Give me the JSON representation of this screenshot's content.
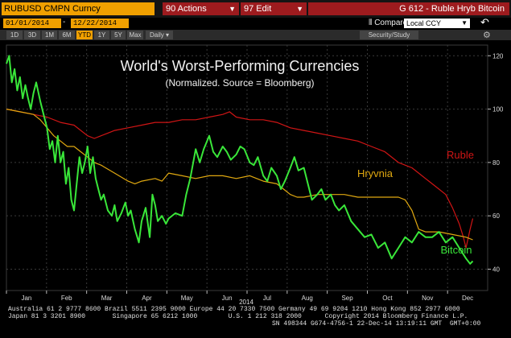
{
  "header": {
    "ticker": "RUBUSD CMPN Curncy",
    "actions_label": "90 Actions",
    "edit_label": "97 Edit",
    "security_title": "G 612 - Ruble Hryb Bitcoin",
    "start_date": "01/01/2014",
    "end_date": "12/22/2014",
    "compare_label": "Compare",
    "currency_option": "Local CCY",
    "undo_icon": "undo-arrow-icon",
    "settings_icon": "gear-icon"
  },
  "periods": [
    "1D",
    "3D",
    "1M",
    "6M",
    "YTD",
    "1Y",
    "5Y",
    "Max"
  ],
  "active_period": "YTD",
  "frequency": "Daily",
  "security_study_label": "Security/Study",
  "footer": {
    "line1": "Australia 61 2 9777 8600 Brazil 5511 2395 9000 Europe 44 20 7330 7500 Germany 49 69 9204 1210 Hong Kong 852 2977 6000",
    "line2": "Japan 81 3 3201 8900       Singapore 65 6212 1000        U.S. 1 212 318 2000      Copyright 2014 Bloomberg Finance L.P.",
    "line3": "SN 498344 G674-4756-1 22-Dec-14 13:19:11 GMT  GMT+0:00"
  },
  "colors": {
    "background": "#000000",
    "ruble": "#d01515",
    "hryvnia": "#e0a810",
    "bitcoin": "#39e639",
    "grid": "#3a3a3a",
    "accent": "#f0a000",
    "tab_red": "#9d1b1e"
  },
  "chart_data": {
    "type": "line",
    "title": "World's Worst-Performing Currencies",
    "subtitle": "(Normalized. Source = Bloomberg)",
    "xlabel": "2014",
    "x_ticks": [
      "Jan",
      "Feb",
      "Mar",
      "Apr",
      "May",
      "Jun",
      "Jul",
      "Aug",
      "Sep",
      "Oct",
      "Nov",
      "Dec"
    ],
    "y_ticks": [
      40,
      60,
      80,
      100,
      120
    ],
    "ylim": [
      32,
      124
    ],
    "xlim": [
      0,
      356
    ],
    "grid": true,
    "series": [
      {
        "name": "Ruble",
        "color": "#d01515",
        "points": [
          [
            0,
            100
          ],
          [
            10,
            99
          ],
          [
            20,
            98
          ],
          [
            30,
            97
          ],
          [
            40,
            95
          ],
          [
            50,
            94
          ],
          [
            55,
            92
          ],
          [
            60,
            90
          ],
          [
            65,
            89
          ],
          [
            70,
            90
          ],
          [
            75,
            91
          ],
          [
            80,
            92
          ],
          [
            90,
            93
          ],
          [
            100,
            94
          ],
          [
            110,
            95
          ],
          [
            120,
            95
          ],
          [
            130,
            96
          ],
          [
            140,
            96
          ],
          [
            150,
            97
          ],
          [
            160,
            98
          ],
          [
            165,
            99
          ],
          [
            170,
            97
          ],
          [
            180,
            96
          ],
          [
            190,
            96
          ],
          [
            200,
            95
          ],
          [
            210,
            93
          ],
          [
            220,
            92
          ],
          [
            230,
            91
          ],
          [
            240,
            90
          ],
          [
            250,
            89
          ],
          [
            260,
            88
          ],
          [
            270,
            86
          ],
          [
            280,
            84
          ],
          [
            290,
            80
          ],
          [
            300,
            78
          ],
          [
            305,
            76
          ],
          [
            310,
            74
          ],
          [
            315,
            72
          ],
          [
            320,
            70
          ],
          [
            325,
            68
          ],
          [
            330,
            63
          ],
          [
            335,
            57
          ],
          [
            338,
            52
          ],
          [
            340,
            48
          ],
          [
            343,
            55
          ],
          [
            345,
            59
          ]
        ]
      },
      {
        "name": "Hryvnia",
        "color": "#e0a810",
        "points": [
          [
            0,
            100
          ],
          [
            10,
            99
          ],
          [
            20,
            98
          ],
          [
            25,
            96
          ],
          [
            30,
            93
          ],
          [
            35,
            90
          ],
          [
            40,
            88
          ],
          [
            45,
            86
          ],
          [
            50,
            86
          ],
          [
            55,
            84
          ],
          [
            60,
            82
          ],
          [
            65,
            80
          ],
          [
            70,
            79
          ],
          [
            80,
            76
          ],
          [
            90,
            73
          ],
          [
            95,
            72
          ],
          [
            100,
            73
          ],
          [
            110,
            74
          ],
          [
            115,
            73
          ],
          [
            120,
            76
          ],
          [
            130,
            75
          ],
          [
            140,
            74
          ],
          [
            150,
            75
          ],
          [
            160,
            75
          ],
          [
            170,
            74
          ],
          [
            180,
            75
          ],
          [
            190,
            73
          ],
          [
            200,
            72
          ],
          [
            205,
            70
          ],
          [
            210,
            68
          ],
          [
            215,
            67
          ],
          [
            220,
            67
          ],
          [
            230,
            68
          ],
          [
            240,
            68
          ],
          [
            250,
            68
          ],
          [
            260,
            67
          ],
          [
            270,
            67
          ],
          [
            280,
            67
          ],
          [
            290,
            67
          ],
          [
            295,
            66
          ],
          [
            300,
            62
          ],
          [
            305,
            55
          ],
          [
            310,
            54
          ],
          [
            320,
            54
          ],
          [
            330,
            53
          ],
          [
            340,
            52
          ],
          [
            345,
            51
          ]
        ]
      },
      {
        "name": "Bitcoin",
        "color": "#39e639",
        "points": [
          [
            0,
            117
          ],
          [
            2,
            120
          ],
          [
            4,
            110
          ],
          [
            6,
            115
          ],
          [
            8,
            107
          ],
          [
            10,
            112
          ],
          [
            12,
            104
          ],
          [
            14,
            109
          ],
          [
            16,
            104
          ],
          [
            18,
            100
          ],
          [
            20,
            106
          ],
          [
            22,
            110
          ],
          [
            25,
            103
          ],
          [
            28,
            97
          ],
          [
            30,
            93
          ],
          [
            32,
            85
          ],
          [
            34,
            88
          ],
          [
            36,
            80
          ],
          [
            38,
            90
          ],
          [
            40,
            80
          ],
          [
            42,
            84
          ],
          [
            44,
            72
          ],
          [
            46,
            78
          ],
          [
            48,
            66
          ],
          [
            50,
            62
          ],
          [
            52,
            72
          ],
          [
            54,
            82
          ],
          [
            56,
            76
          ],
          [
            58,
            80
          ],
          [
            60,
            86
          ],
          [
            62,
            76
          ],
          [
            64,
            82
          ],
          [
            66,
            74
          ],
          [
            68,
            70
          ],
          [
            70,
            66
          ],
          [
            72,
            68
          ],
          [
            75,
            62
          ],
          [
            78,
            60
          ],
          [
            80,
            64
          ],
          [
            82,
            58
          ],
          [
            85,
            61
          ],
          [
            88,
            65
          ],
          [
            90,
            60
          ],
          [
            92,
            62
          ],
          [
            95,
            55
          ],
          [
            98,
            50
          ],
          [
            100,
            58
          ],
          [
            103,
            63
          ],
          [
            106,
            52
          ],
          [
            108,
            68
          ],
          [
            110,
            64
          ],
          [
            112,
            58
          ],
          [
            115,
            60
          ],
          [
            118,
            57
          ],
          [
            120,
            59
          ],
          [
            125,
            61
          ],
          [
            130,
            60
          ],
          [
            133,
            68
          ],
          [
            136,
            74
          ],
          [
            140,
            85
          ],
          [
            143,
            80
          ],
          [
            146,
            85
          ],
          [
            150,
            90
          ],
          [
            153,
            84
          ],
          [
            156,
            82
          ],
          [
            160,
            86
          ],
          [
            163,
            84
          ],
          [
            166,
            81
          ],
          [
            170,
            83
          ],
          [
            173,
            86
          ],
          [
            176,
            85
          ],
          [
            180,
            80
          ],
          [
            183,
            79
          ],
          [
            186,
            82
          ],
          [
            190,
            75
          ],
          [
            193,
            73
          ],
          [
            196,
            78
          ],
          [
            200,
            75
          ],
          [
            203,
            70
          ],
          [
            206,
            73
          ],
          [
            210,
            78
          ],
          [
            213,
            82
          ],
          [
            216,
            77
          ],
          [
            220,
            78
          ],
          [
            223,
            72
          ],
          [
            226,
            66
          ],
          [
            230,
            68
          ],
          [
            233,
            70
          ],
          [
            236,
            66
          ],
          [
            240,
            68
          ],
          [
            243,
            64
          ],
          [
            246,
            62
          ],
          [
            250,
            64
          ],
          [
            255,
            58
          ],
          [
            260,
            55
          ],
          [
            265,
            52
          ],
          [
            270,
            53
          ],
          [
            275,
            48
          ],
          [
            280,
            50
          ],
          [
            285,
            44
          ],
          [
            290,
            48
          ],
          [
            295,
            52
          ],
          [
            300,
            50
          ],
          [
            305,
            54
          ],
          [
            310,
            52
          ],
          [
            315,
            52
          ],
          [
            320,
            54
          ],
          [
            325,
            50
          ],
          [
            330,
            52
          ],
          [
            335,
            48
          ],
          [
            340,
            44
          ],
          [
            343,
            42
          ],
          [
            345,
            43
          ]
        ]
      }
    ]
  }
}
